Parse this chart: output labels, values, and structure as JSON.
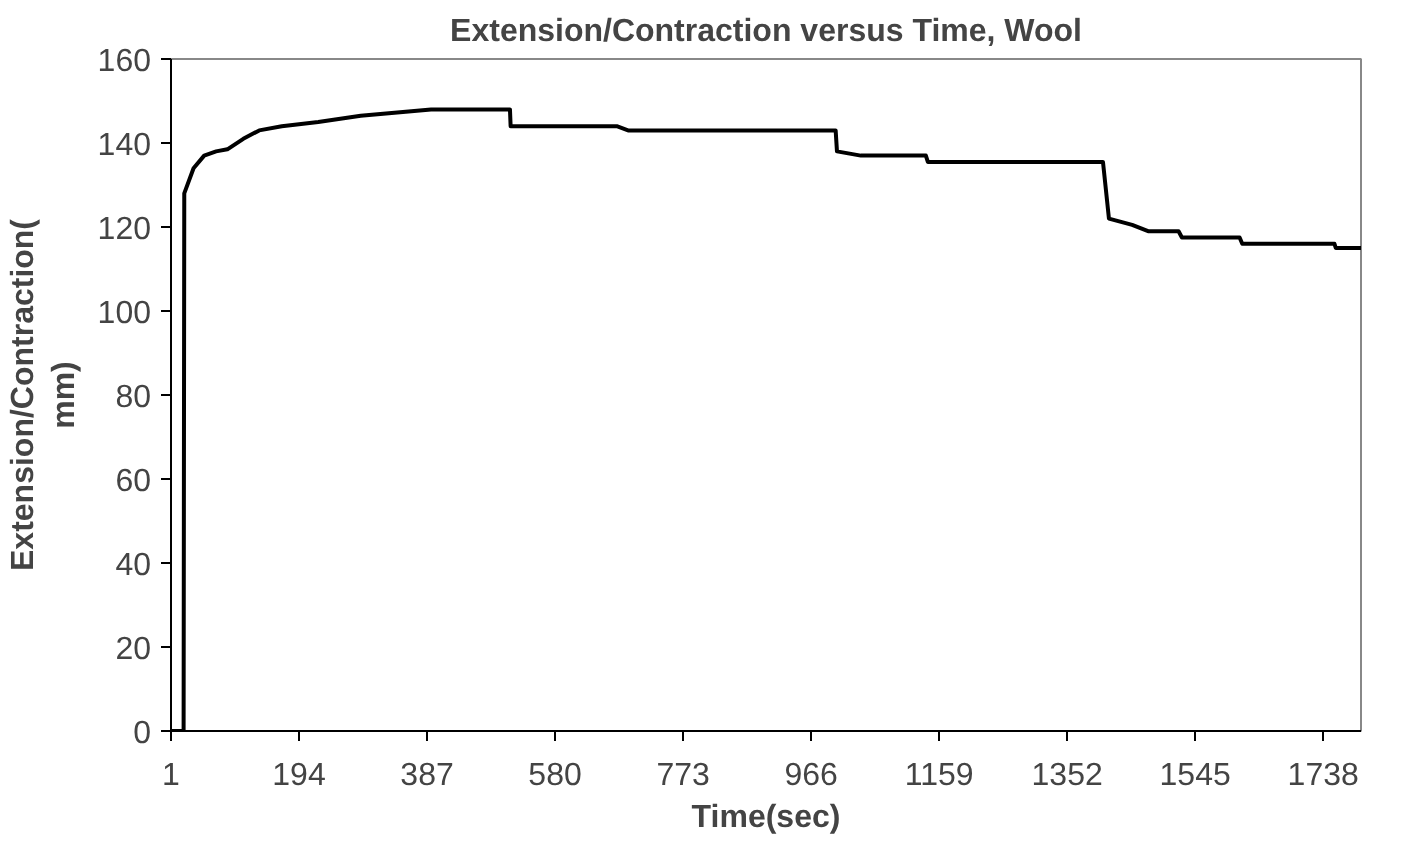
{
  "chart_data": {
    "type": "line",
    "title": "Extension/Contraction versus Time, Wool",
    "xlabel": "Time(sec)",
    "ylabel": "Extension/Contraction(\nmm)",
    "x": [
      1,
      20,
      21,
      35,
      51,
      69,
      86,
      110,
      134,
      168,
      223,
      287,
      393,
      512,
      513,
      673,
      690,
      1003,
      1005,
      1041,
      1139,
      1142,
      1406,
      1415,
      1450,
      1474,
      1520,
      1525,
      1612,
      1616,
      1755,
      1757,
      1795
    ],
    "series": [
      {
        "color": "#000000",
        "values": [
          0,
          0,
          128,
          134,
          137,
          138,
          138.5,
          141,
          143,
          144,
          145,
          146.5,
          148,
          148,
          144,
          144,
          143,
          143,
          138,
          137,
          137,
          135.5,
          135.5,
          122,
          120.5,
          119,
          119,
          117.5,
          117.5,
          116,
          116,
          115,
          115
        ]
      }
    ],
    "xlim": [
      1,
      1795
    ],
    "xticks": [
      1,
      194,
      387,
      580,
      773,
      966,
      1159,
      1352,
      1545,
      1738
    ],
    "ylim": [
      0,
      160
    ],
    "yticks": [
      0,
      20,
      40,
      60,
      80,
      100,
      120,
      140,
      160
    ],
    "grid": false,
    "marker": "none",
    "line_style": "solid"
  }
}
